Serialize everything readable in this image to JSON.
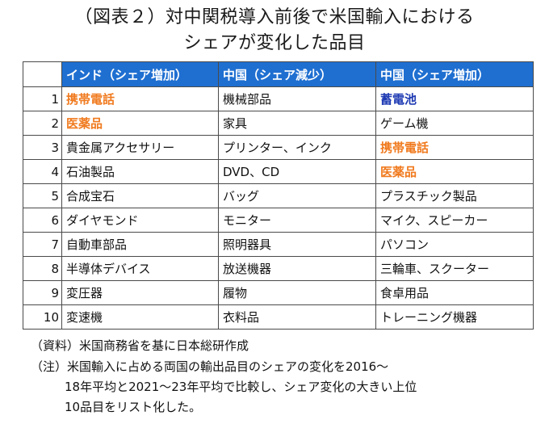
{
  "title": {
    "line1": "（図表２）対中関税導入前後で米国輸入における",
    "line2": "シェアが変化した品目"
  },
  "table": {
    "headers": [
      "",
      "インド（シェア増加）",
      "中国（シェア減少）",
      "中国（シェア増加）"
    ],
    "rows": [
      {
        "rank": "1",
        "india_up": "携帯電話",
        "china_down": "機械部品",
        "china_up": "蓄電池"
      },
      {
        "rank": "2",
        "india_up": "医薬品",
        "china_down": "家具",
        "china_up": "ゲーム機"
      },
      {
        "rank": "3",
        "india_up": "貴金属アクセサリー",
        "china_down": "プリンター、インク",
        "china_up": "携帯電話"
      },
      {
        "rank": "4",
        "india_up": "石油製品",
        "china_down": "DVD、CD",
        "china_up": "医薬品"
      },
      {
        "rank": "5",
        "india_up": "合成宝石",
        "china_down": "バッグ",
        "china_up": "プラスチック製品"
      },
      {
        "rank": "6",
        "india_up": "ダイヤモンド",
        "china_down": "モニター",
        "china_up": "マイク、スピーカー"
      },
      {
        "rank": "7",
        "india_up": "自動車部品",
        "china_down": "照明器具",
        "china_up": "パソコン"
      },
      {
        "rank": "8",
        "india_up": "半導体デバイス",
        "china_down": "放送機器",
        "china_up": "三輪車、スクーター"
      },
      {
        "rank": "9",
        "india_up": "変圧器",
        "china_down": "履物",
        "china_up": "食卓用品"
      },
      {
        "rank": "10",
        "india_up": "変速機",
        "china_down": "衣料品",
        "china_up": "トレーニング機器"
      }
    ],
    "highlight_colors": {
      "orange": "#f07a1e",
      "navy": "#1f3bb3",
      "header_bg": "#1f6fd1"
    }
  },
  "notes": {
    "source": "（資料）米国商務省を基に日本総研作成",
    "note_line1": "（注）米国輸入に占める両国の輸出品目のシェアの変化を2016～",
    "note_line2": "18年平均と2021～23年平均で比較し、シェア変化の大きい上位",
    "note_line3": "10品目をリスト化した。"
  }
}
